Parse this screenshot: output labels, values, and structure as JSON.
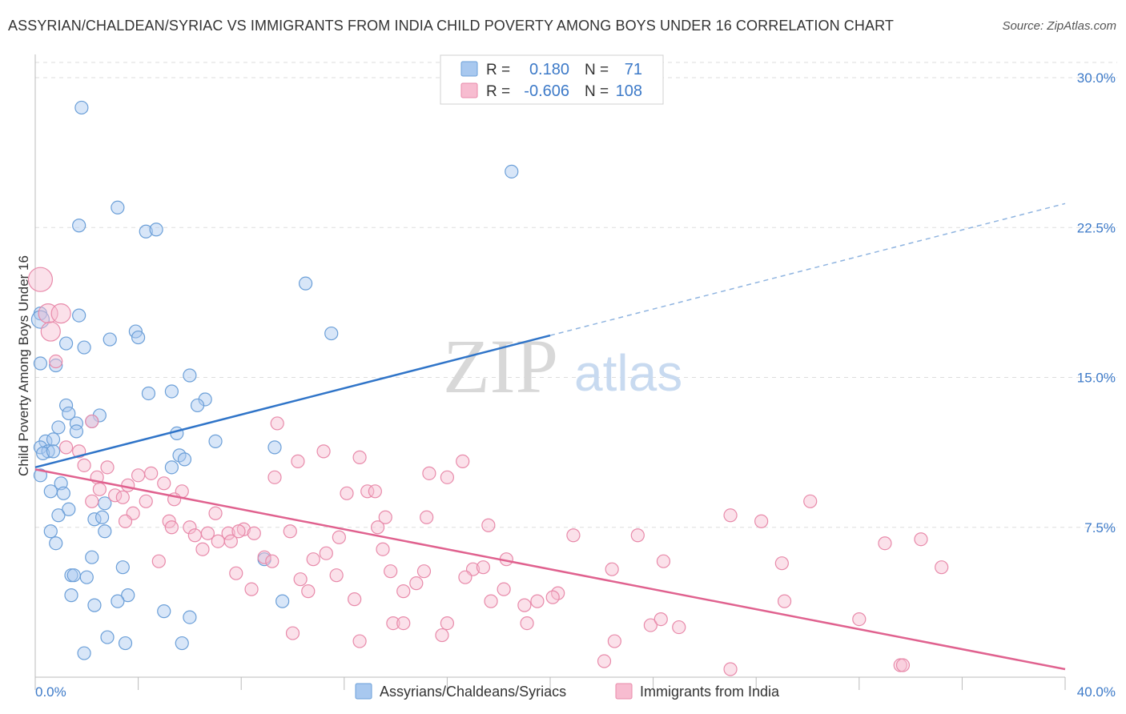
{
  "header": {
    "title": "ASSYRIAN/CHALDEAN/SYRIAC VS IMMIGRANTS FROM INDIA CHILD POVERTY AMONG BOYS UNDER 16 CORRELATION CHART",
    "source": "Source: ZipAtlas.com"
  },
  "watermark": {
    "zip": "ZIP",
    "atlas": "atlas"
  },
  "legend": {
    "r_label": "R =",
    "n_label": "N =",
    "rows": [
      {
        "r": "0.180",
        "n": "71",
        "color": "#a8c8ef",
        "stroke": "#6b9fd8"
      },
      {
        "r": "-0.606",
        "n": "108",
        "color": "#f7bcd0",
        "stroke": "#e88aaa"
      }
    ]
  },
  "bottom_legend": {
    "items": [
      {
        "label": "Assyrians/Chaldeans/Syriacs",
        "color": "#a8c8ef",
        "stroke": "#6b9fd8"
      },
      {
        "label": "Immigrants from India",
        "color": "#f7bcd0",
        "stroke": "#e88aaa"
      }
    ]
  },
  "chart_data": {
    "type": "scatter",
    "title": "ASSYRIAN/CHALDEAN/SYRIAC VS IMMIGRANTS FROM INDIA CHILD POVERTY AMONG BOYS UNDER 16 CORRELATION CHART",
    "xlabel": "",
    "ylabel": "Child Poverty Among Boys Under 16",
    "xlim": [
      0,
      40
    ],
    "ylim": [
      0,
      30
    ],
    "x_tick_labels": [
      "0.0%",
      "40.0%"
    ],
    "y_ticks": [
      7.5,
      15.0,
      22.5,
      30.0
    ],
    "y_tick_labels": [
      "7.5%",
      "15.0%",
      "22.5%",
      "30.0%"
    ],
    "grid": true,
    "legend_position": "top-center",
    "series": [
      {
        "name": "Assyrians/Chaldeans/Syriacs",
        "color": "#a8c8ef",
        "stroke": "#6b9fd8",
        "trend": {
          "x1": 0,
          "y1": 10.5,
          "x2": 20,
          "y2": 17.1,
          "dash_to_x": 40,
          "dash_to_y": 23.7,
          "color": "#2f74c8"
        },
        "points": [
          [
            1.8,
            28.5
          ],
          [
            3.2,
            23.5
          ],
          [
            1.7,
            22.6
          ],
          [
            4.3,
            22.3
          ],
          [
            4.7,
            22.4
          ],
          [
            18.5,
            25.3
          ],
          [
            10.5,
            19.7
          ],
          [
            0.2,
            18.2
          ],
          [
            1.7,
            18.1
          ],
          [
            3.9,
            17.3
          ],
          [
            2.9,
            16.9
          ],
          [
            4.0,
            17.0
          ],
          [
            1.9,
            16.5
          ],
          [
            1.2,
            16.7
          ],
          [
            11.5,
            17.2
          ],
          [
            0.2,
            15.7
          ],
          [
            0.8,
            15.6
          ],
          [
            6.0,
            15.1
          ],
          [
            5.3,
            14.3
          ],
          [
            4.4,
            14.2
          ],
          [
            6.6,
            13.9
          ],
          [
            6.3,
            13.6
          ],
          [
            1.2,
            13.6
          ],
          [
            1.3,
            13.2
          ],
          [
            2.5,
            13.1
          ],
          [
            2.2,
            12.8
          ],
          [
            1.6,
            12.7
          ],
          [
            0.9,
            12.5
          ],
          [
            1.6,
            12.3
          ],
          [
            5.5,
            12.2
          ],
          [
            0.4,
            11.8
          ],
          [
            0.7,
            11.9
          ],
          [
            7.0,
            11.8
          ],
          [
            0.2,
            11.5
          ],
          [
            0.5,
            11.3
          ],
          [
            0.3,
            11.2
          ],
          [
            0.7,
            11.3
          ],
          [
            9.3,
            11.5
          ],
          [
            5.6,
            11.1
          ],
          [
            5.8,
            10.9
          ],
          [
            5.3,
            10.5
          ],
          [
            0.2,
            10.1
          ],
          [
            1.0,
            9.7
          ],
          [
            0.6,
            9.3
          ],
          [
            1.1,
            9.2
          ],
          [
            2.7,
            8.7
          ],
          [
            1.3,
            8.4
          ],
          [
            0.9,
            8.1
          ],
          [
            2.3,
            7.9
          ],
          [
            2.6,
            8.0
          ],
          [
            0.6,
            7.3
          ],
          [
            2.7,
            7.3
          ],
          [
            0.8,
            6.7
          ],
          [
            2.2,
            6.0
          ],
          [
            8.9,
            5.9
          ],
          [
            3.4,
            5.5
          ],
          [
            1.4,
            5.1
          ],
          [
            1.5,
            5.1
          ],
          [
            2.0,
            5.0
          ],
          [
            1.4,
            4.1
          ],
          [
            3.6,
            4.1
          ],
          [
            2.3,
            3.6
          ],
          [
            3.2,
            3.8
          ],
          [
            9.6,
            3.8
          ],
          [
            5.0,
            3.3
          ],
          [
            6.0,
            3.0
          ],
          [
            2.8,
            2.0
          ],
          [
            3.5,
            1.7
          ],
          [
            5.7,
            1.7
          ],
          [
            1.9,
            1.2
          ],
          [
            0.2,
            17.9
          ]
        ]
      },
      {
        "name": "Immigrants from India",
        "color": "#f7bcd0",
        "stroke": "#e88aaa",
        "trend": {
          "x1": 0,
          "y1": 10.4,
          "x2": 40,
          "y2": 0.4,
          "color": "#e0628f"
        },
        "points": [
          [
            0.2,
            19.9
          ],
          [
            0.5,
            18.2
          ],
          [
            1.0,
            18.2
          ],
          [
            0.6,
            17.3
          ],
          [
            0.8,
            15.8
          ],
          [
            2.2,
            12.8
          ],
          [
            9.4,
            12.7
          ],
          [
            1.2,
            11.5
          ],
          [
            1.7,
            11.3
          ],
          [
            11.2,
            11.3
          ],
          [
            12.6,
            11.0
          ],
          [
            10.2,
            10.8
          ],
          [
            16.6,
            10.8
          ],
          [
            1.9,
            10.6
          ],
          [
            2.8,
            10.5
          ],
          [
            15.3,
            10.2
          ],
          [
            4.0,
            10.1
          ],
          [
            4.5,
            10.2
          ],
          [
            2.4,
            10.0
          ],
          [
            9.3,
            10.0
          ],
          [
            16.0,
            10.0
          ],
          [
            5.0,
            9.7
          ],
          [
            3.6,
            9.6
          ],
          [
            2.5,
            9.4
          ],
          [
            5.7,
            9.3
          ],
          [
            12.9,
            9.3
          ],
          [
            12.1,
            9.2
          ],
          [
            3.1,
            9.1
          ],
          [
            3.4,
            9.0
          ],
          [
            5.4,
            8.9
          ],
          [
            2.2,
            8.8
          ],
          [
            4.3,
            8.8
          ],
          [
            30.1,
            8.8
          ],
          [
            27.0,
            8.1
          ],
          [
            7.0,
            8.2
          ],
          [
            3.8,
            8.2
          ],
          [
            13.6,
            8.0
          ],
          [
            15.2,
            8.0
          ],
          [
            3.5,
            7.8
          ],
          [
            5.2,
            7.8
          ],
          [
            28.2,
            7.8
          ],
          [
            5.3,
            7.5
          ],
          [
            6.0,
            7.5
          ],
          [
            17.6,
            7.6
          ],
          [
            13.3,
            7.5
          ],
          [
            8.1,
            7.4
          ],
          [
            9.9,
            7.3
          ],
          [
            8.5,
            7.2
          ],
          [
            6.2,
            7.1
          ],
          [
            6.7,
            7.2
          ],
          [
            7.5,
            7.2
          ],
          [
            7.9,
            7.3
          ],
          [
            20.9,
            7.1
          ],
          [
            23.4,
            7.1
          ],
          [
            11.8,
            7.0
          ],
          [
            7.1,
            6.8
          ],
          [
            7.6,
            6.8
          ],
          [
            34.4,
            6.9
          ],
          [
            33.0,
            6.7
          ],
          [
            13.5,
            6.4
          ],
          [
            6.5,
            6.4
          ],
          [
            11.3,
            6.2
          ],
          [
            8.9,
            6.0
          ],
          [
            10.8,
            5.9
          ],
          [
            18.3,
            5.9
          ],
          [
            4.8,
            5.8
          ],
          [
            9.2,
            5.8
          ],
          [
            24.4,
            5.8
          ],
          [
            29.0,
            5.7
          ],
          [
            35.2,
            5.5
          ],
          [
            17.0,
            5.4
          ],
          [
            17.4,
            5.5
          ],
          [
            22.4,
            5.4
          ],
          [
            13.8,
            5.3
          ],
          [
            15.1,
            5.3
          ],
          [
            7.8,
            5.2
          ],
          [
            11.7,
            5.1
          ],
          [
            16.7,
            5.0
          ],
          [
            10.3,
            4.9
          ],
          [
            14.8,
            4.7
          ],
          [
            8.4,
            4.4
          ],
          [
            10.6,
            4.3
          ],
          [
            14.3,
            4.3
          ],
          [
            18.2,
            4.4
          ],
          [
            20.3,
            4.2
          ],
          [
            20.1,
            4.0
          ],
          [
            12.4,
            3.9
          ],
          [
            19.5,
            3.8
          ],
          [
            17.7,
            3.8
          ],
          [
            29.1,
            3.8
          ],
          [
            19.0,
            3.6
          ],
          [
            13.9,
            2.7
          ],
          [
            14.3,
            2.7
          ],
          [
            16.0,
            2.7
          ],
          [
            19.1,
            2.7
          ],
          [
            23.9,
            2.6
          ],
          [
            24.3,
            2.9
          ],
          [
            25.0,
            2.5
          ],
          [
            32.0,
            2.9
          ],
          [
            10.0,
            2.2
          ],
          [
            12.6,
            1.8
          ],
          [
            15.8,
            2.1
          ],
          [
            22.5,
            1.8
          ],
          [
            22.1,
            0.8
          ],
          [
            33.6,
            0.6
          ],
          [
            33.7,
            0.6
          ],
          [
            27.0,
            0.4
          ],
          [
            13.2,
            9.3
          ]
        ]
      }
    ]
  }
}
